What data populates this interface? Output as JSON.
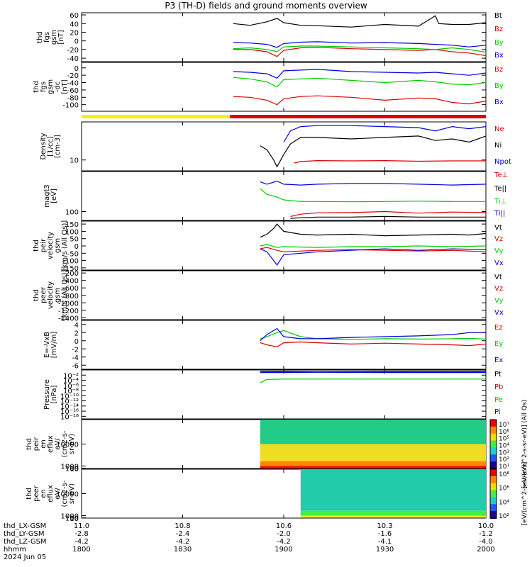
{
  "title": "P3 (TH-D) fields and ground moments overview",
  "colors": {
    "black": "#000000",
    "red": "#dd0000",
    "blue": "#0000dd",
    "green": "#00cc00",
    "yellow": "#ffee00",
    "barred": "#dd0000"
  },
  "chart_data": [
    {
      "type": "line",
      "id": "fgs_gsm",
      "ylabel": [
        "thd",
        "fgs",
        "gsm",
        "[nT]"
      ],
      "ticks": [
        60,
        40,
        20,
        0,
        -20,
        -40
      ],
      "ylim": [
        -48,
        65
      ],
      "series": [
        {
          "name": "Bt",
          "color": "black",
          "x": [
            1845,
            1850,
            1855,
            1858,
            1900,
            1905,
            1910,
            1920,
            1930,
            1940,
            1945,
            1946,
            1950,
            1955,
            2000
          ],
          "y": [
            40,
            36,
            44,
            52,
            42,
            36,
            35,
            32,
            38,
            34,
            58,
            40,
            38,
            38,
            42
          ]
        },
        {
          "name": "Bz",
          "color": "red",
          "x": [
            1845,
            1850,
            1855,
            1858,
            1900,
            1905,
            1910,
            1920,
            1930,
            1940,
            1945,
            1950,
            1955,
            2000
          ],
          "y": [
            -20,
            -20,
            -25,
            -36,
            -22,
            -16,
            -15,
            -18,
            -20,
            -22,
            -20,
            -25,
            -28,
            -34
          ]
        },
        {
          "name": "By",
          "color": "green",
          "x": [
            1845,
            1850,
            1855,
            1858,
            1900,
            1905,
            1910,
            1920,
            1930,
            1940,
            1945,
            1950,
            1955,
            2000
          ],
          "y": [
            -18,
            -16,
            -20,
            -25,
            -14,
            -12,
            -12,
            -14,
            -16,
            -18,
            -20,
            -16,
            -20,
            -26
          ]
        },
        {
          "name": "Bx",
          "color": "blue",
          "x": [
            1845,
            1850,
            1855,
            1858,
            1900,
            1905,
            1910,
            1920,
            1930,
            1940,
            1945,
            1950,
            1955,
            2000
          ],
          "y": [
            -4,
            -5,
            -8,
            -15,
            -6,
            -3,
            -2,
            -5,
            -4,
            -6,
            -8,
            -10,
            -14,
            -10
          ]
        }
      ]
    },
    {
      "type": "line",
      "id": "fgs_gsm_dc",
      "ylabel": [
        "thd",
        "fgs",
        "gsm",
        "-dc",
        "[nT]"
      ],
      "ticks": [
        0,
        -20,
        -40,
        -60,
        -80,
        -100
      ],
      "ylim": [
        -118,
        15
      ],
      "series": [
        {
          "name": "Bz",
          "color": "red",
          "x": [
            1845,
            1850,
            1855,
            1858,
            1900,
            1905,
            1910,
            1920,
            1930,
            1940,
            1945,
            1950,
            1955,
            2000
          ],
          "y": [
            -78,
            -80,
            -88,
            -100,
            -84,
            -78,
            -76,
            -80,
            -88,
            -82,
            -84,
            -94,
            -98,
            -90
          ]
        },
        {
          "name": "By",
          "color": "green",
          "x": [
            1845,
            1850,
            1855,
            1858,
            1900,
            1905,
            1910,
            1920,
            1930,
            1940,
            1945,
            1950,
            1955,
            2000
          ],
          "y": [
            -26,
            -30,
            -38,
            -52,
            -32,
            -30,
            -28,
            -34,
            -40,
            -34,
            -38,
            -44,
            -46,
            -40
          ]
        },
        {
          "name": "Bx",
          "color": "blue",
          "x": [
            1845,
            1850,
            1855,
            1858,
            1900,
            1905,
            1910,
            1920,
            1930,
            1940,
            1945,
            1950,
            1955,
            2000
          ],
          "y": [
            -10,
            -12,
            -16,
            -28,
            -8,
            -6,
            -4,
            -10,
            -12,
            -14,
            -12,
            -16,
            -20,
            -14
          ]
        }
      ]
    },
    {
      "type": "line",
      "id": "density",
      "log": true,
      "ylabel": [
        "Density",
        "[1/cc]",
        "[cm-3]"
      ],
      "ticks": [
        10
      ],
      "ylim": [
        7,
        35
      ],
      "series": [
        {
          "name": "Ne",
          "color": "red",
          "x": [
            1903,
            1905,
            1910,
            1920,
            1930,
            1940,
            1950,
            2000
          ],
          "y": [
            9,
            9.5,
            9.8,
            9.7,
            9.8,
            9.6,
            9.7,
            9.7
          ]
        },
        {
          "name": "Ni",
          "color": "black",
          "x": [
            1853,
            1855,
            1857,
            1858,
            1900,
            1902,
            1905,
            1910,
            1920,
            1930,
            1940,
            1945,
            1950,
            1955,
            2000
          ],
          "y": [
            16,
            14,
            10,
            8,
            12,
            17,
            21,
            21,
            20,
            21,
            22,
            19,
            20,
            18,
            22
          ]
        },
        {
          "name": "Npot",
          "color": "blue",
          "x": [
            1900,
            1902,
            1905,
            1910,
            1920,
            1930,
            1940,
            1945,
            1950,
            1955,
            2000
          ],
          "y": [
            18,
            26,
            30,
            31,
            31,
            30,
            29,
            26,
            30,
            28,
            30
          ]
        }
      ]
    },
    {
      "type": "line",
      "id": "moments_temp",
      "log": true,
      "ylabel": [
        "magt3",
        "[eV]"
      ],
      "ticks": [
        100
      ],
      "ylim": [
        70,
        500
      ],
      "series": [
        {
          "name": "Te⊥",
          "color": "red",
          "x": [
            1902,
            1905,
            1910,
            1920,
            1930,
            1940,
            1950,
            2000
          ],
          "y": [
            82,
            90,
            95,
            96,
            100,
            94,
            98,
            96
          ]
        },
        {
          "name": "Te||",
          "color": "black",
          "x": [
            1902,
            1905,
            1910,
            1920,
            1930,
            1940,
            1950,
            2000
          ],
          "y": [
            76,
            78,
            80,
            80,
            82,
            80,
            80,
            80
          ]
        },
        {
          "name": "Ti⊥",
          "color": "green",
          "x": [
            1853,
            1855,
            1858,
            1900,
            1905,
            1910,
            1920,
            1930,
            1940,
            1950,
            2000
          ],
          "y": [
            250,
            200,
            180,
            160,
            150,
            150,
            148,
            150,
            152,
            150,
            150
          ]
        },
        {
          "name": "Ti||",
          "color": "blue",
          "x": [
            1853,
            1855,
            1858,
            1900,
            1905,
            1910,
            1920,
            1930,
            1940,
            1950,
            2000
          ],
          "y": [
            330,
            300,
            340,
            300,
            290,
            300,
            310,
            310,
            300,
            290,
            300
          ]
        }
      ]
    },
    {
      "type": "line",
      "id": "peir_velocity",
      "ylabel": [
        "thd",
        "peir",
        "velocity",
        "gsm",
        "[km/s (All Qs)]"
      ],
      "ticks": [
        150,
        100,
        50,
        0,
        -50,
        -100,
        -150
      ],
      "ylim": [
        -165,
        170
      ],
      "series": [
        {
          "name": "Vt",
          "color": "black",
          "x": [
            1853,
            1855,
            1857,
            1858,
            1900,
            1905,
            1910,
            1920,
            1930,
            1940,
            1950,
            1955,
            2000
          ],
          "y": [
            60,
            80,
            120,
            150,
            100,
            80,
            75,
            80,
            70,
            75,
            80,
            75,
            85
          ]
        },
        {
          "name": "Vz",
          "color": "red",
          "x": [
            1853,
            1855,
            1858,
            1900,
            1910,
            1920,
            1930,
            1940,
            1950,
            2000
          ],
          "y": [
            -20,
            -10,
            -30,
            -40,
            -30,
            -25,
            -30,
            -35,
            -30,
            -40
          ]
        },
        {
          "name": "Vy",
          "color": "green",
          "x": [
            1853,
            1855,
            1858,
            1900,
            1910,
            1920,
            1930,
            1940,
            1950,
            2000
          ],
          "y": [
            0,
            10,
            -10,
            -5,
            -10,
            -5,
            -5,
            0,
            -5,
            0
          ]
        },
        {
          "name": "Vx",
          "color": "blue",
          "x": [
            1853,
            1855,
            1857,
            1858,
            1900,
            1910,
            1920,
            1930,
            1940,
            1950,
            2000
          ],
          "y": [
            -20,
            -40,
            -100,
            -130,
            -60,
            -40,
            -30,
            -20,
            -30,
            -20,
            -25
          ]
        }
      ]
    },
    {
      "type": "line",
      "id": "peer_velocity",
      "ylabel": [
        "thd",
        "peer",
        "velocity",
        "gsm",
        "[km/s (All Qs)]"
      ],
      "ticks": [
        -200,
        -400,
        -600,
        -800,
        -1000,
        -1200,
        -1400
      ],
      "ylim": [
        -1450,
        -140
      ],
      "series": [
        {
          "name": "Vt",
          "color": "black",
          "x": [],
          "y": []
        },
        {
          "name": "Vz",
          "color": "red",
          "x": [],
          "y": []
        },
        {
          "name": "Vy",
          "color": "green",
          "x": [],
          "y": []
        },
        {
          "name": "Vx",
          "color": "blue",
          "x": [],
          "y": []
        }
      ]
    },
    {
      "type": "line",
      "id": "efield",
      "ylabel": [
        "E=-VxB",
        "[mV/m]"
      ],
      "ticks": [
        4,
        2,
        0,
        -2,
        -4,
        -6
      ],
      "ylim": [
        -7,
        5
      ],
      "series": [
        {
          "name": "Ez",
          "color": "red",
          "x": [
            1853,
            1855,
            1858,
            1900,
            1905,
            1910,
            1920,
            1930,
            1940,
            1950,
            1955,
            2000
          ],
          "y": [
            -0.5,
            -1,
            -1.5,
            -0.5,
            -0.3,
            -0.5,
            -0.8,
            -0.6,
            -0.8,
            -1,
            -1.2,
            -0.8
          ]
        },
        {
          "name": "Ey",
          "color": "green",
          "x": [
            1853,
            1855,
            1858,
            1900,
            1905,
            1910,
            1920,
            1930,
            1940,
            1950,
            1955,
            2000
          ],
          "y": [
            0.5,
            1,
            2,
            2.5,
            1,
            0.5,
            0.3,
            0.5,
            0.4,
            0.5,
            0.6,
            0.4
          ]
        },
        {
          "name": "Ex",
          "color": "blue",
          "x": [
            1853,
            1855,
            1858,
            1900,
            1905,
            1910,
            1920,
            1930,
            1940,
            1950,
            1955,
            2000
          ],
          "y": [
            0,
            1.5,
            3,
            1,
            0.5,
            0.5,
            0.8,
            1,
            1.2,
            1.5,
            2,
            2
          ]
        }
      ]
    },
    {
      "type": "line",
      "id": "pressure",
      "log": true,
      "ylabel": [
        "Pressure",
        "[nPa]"
      ],
      "ticks_label": [
        "10⁻²",
        "10⁻⁴",
        "10⁻⁶",
        "10⁻⁸",
        "10⁻¹⁰",
        "10⁻¹²",
        "10⁻¹⁴",
        "10⁻¹⁶",
        "10⁻¹⁸"
      ],
      "ticks": [
        0.01,
        0.0001,
        1e-06,
        1e-08,
        1e-10,
        1e-12,
        1e-14,
        1e-16,
        1e-18
      ],
      "ylim": [
        1e-19,
        1
      ],
      "series": [
        {
          "name": "Pt",
          "color": "black",
          "x": [
            1853,
            1900,
            1910,
            1930,
            1950,
            2000
          ],
          "y": [
            0.3,
            0.3,
            0.25,
            0.3,
            0.3,
            0.3
          ]
        },
        {
          "name": "Pb",
          "color": "red",
          "x": [
            1853,
            1900,
            1910,
            1930,
            1950,
            2000
          ],
          "y": [
            0.2,
            0.15,
            0.2,
            0.18,
            0.2,
            0.18
          ]
        },
        {
          "name": "Pe",
          "color": "green",
          "x": [
            1853,
            1855,
            1900,
            1910,
            1930,
            1950,
            2000
          ],
          "y": [
            1e-05,
            0.0002,
            0.0003,
            0.0003,
            0.0003,
            0.0003,
            0.0003
          ]
        },
        {
          "name": "Pi",
          "color": "blue",
          "x": [
            1853,
            1900,
            1910,
            1930,
            1950,
            2000
          ],
          "y": [
            0.1,
            0.1,
            0.12,
            0.1,
            0.1,
            0.1
          ]
        }
      ]
    },
    {
      "type": "heatmap",
      "id": "peir_en_eflux",
      "ylabel": [
        "thd",
        "peir",
        "en",
        "eflux",
        "eV/",
        "(cm2-s-",
        "sr-eV)"
      ],
      "ticks": [
        10000,
        1000,
        100,
        10
      ],
      "ylim": [
        7,
        20000
      ],
      "x_start": 1853,
      "colorbar": {
        "label": "[eV/(cm^2-s-sr-eV)] (All Qs)",
        "ticks": [
          "10⁷",
          "10⁶",
          "10⁵",
          "10⁴",
          "10³",
          "10²",
          "10¹"
        ]
      }
    },
    {
      "type": "heatmap",
      "id": "peer_en_eflux",
      "ylabel": [
        "thd",
        "peer",
        "en",
        "eflux",
        "eV/",
        "(cm2-s-",
        "sr-eV)"
      ],
      "ticks": [
        10000,
        1000,
        100,
        10
      ],
      "ylim": [
        7,
        20000
      ],
      "x_start": 1905,
      "colorbar": {
        "label": "[eV/(cm^2-s-sr-eV)]",
        "ticks": [
          "10⁸",
          "10⁶",
          "10⁴",
          "10²"
        ]
      }
    }
  ],
  "x_axis": {
    "tick_times": [
      1800,
      1830,
      1900,
      1930,
      2000
    ],
    "rows": [
      {
        "label": "thd_LX-GSM",
        "values": [
          "11.0",
          "10.8",
          "10.6",
          "10.3",
          "10.0"
        ]
      },
      {
        "label": "thd_LY-GSM",
        "values": [
          "-2.8",
          "-2.4",
          "-2.0",
          "-1.6",
          "-1.2"
        ]
      },
      {
        "label": "thd_LZ-GSM",
        "values": [
          "-4.2",
          "-4.2",
          "-4.2",
          "-4.1",
          "-4.0"
        ]
      },
      {
        "label": "hhmm",
        "values": [
          "1800",
          "1830",
          "1900",
          "1930",
          "2000"
        ]
      }
    ],
    "date": "2024 Jun 05"
  },
  "mode_bar": {
    "yellow_end": 1844,
    "red_start": 1844
  }
}
